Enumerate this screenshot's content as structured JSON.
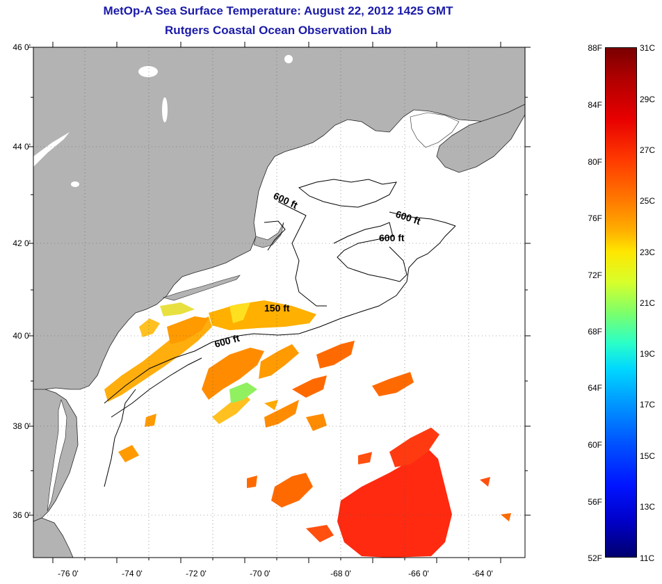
{
  "title": {
    "line1": "MetOp-A Sea Surface Temperature:  August 22, 2012 1425 GMT",
    "line2": "Rutgers Coastal Ocean Observation Lab"
  },
  "colors": {
    "title": "#1a1aa8",
    "land": "#b3b3b3",
    "ocean": "#ffffff"
  },
  "y_axis": {
    "labels": [
      "46 0'",
      "44 0'",
      "42 0'",
      "40 0'",
      "38 0'",
      "36 0'"
    ]
  },
  "x_axis": {
    "labels": [
      "-76 0'",
      "-74 0'",
      "-72 0'",
      "-70 0'",
      "-68 0'",
      "-66 0'",
      "-64 0'"
    ]
  },
  "contours": {
    "label_150": "150 ft",
    "label_600": "600 ft"
  },
  "colorbar": {
    "fahrenheit": [
      "88F",
      "84F",
      "80F",
      "76F",
      "72F",
      "68F",
      "64F",
      "60F",
      "56F",
      "52F"
    ],
    "celsius": [
      "31C",
      "29C",
      "27C",
      "25C",
      "23C",
      "21C",
      "19C",
      "17C",
      "15C",
      "13C",
      "11C"
    ]
  }
}
